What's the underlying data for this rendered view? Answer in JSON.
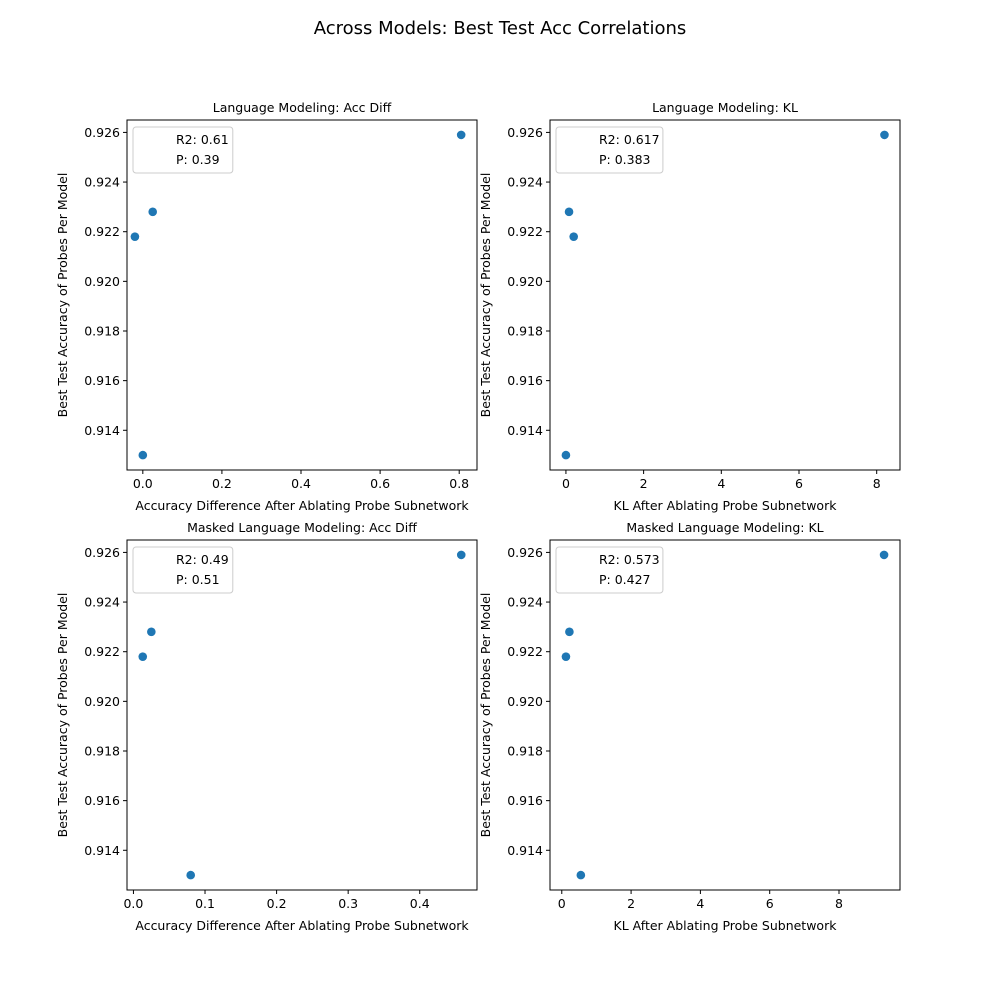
{
  "figure": {
    "title": "Across Models: Best Test Acc Correlations"
  },
  "colors": {
    "marker": "#1f77b4",
    "axis": "#000000",
    "legend_border": "#cccccc"
  },
  "chart_data": [
    {
      "type": "scatter",
      "title": "Language Modeling: Acc Diff",
      "xlabel": "Accuracy Difference After Ablating Probe Subnetwork",
      "ylabel": "Best Test Accuracy of Probes Per Model",
      "x": [
        -0.02,
        0.0,
        0.025,
        0.805
      ],
      "y": [
        0.9218,
        0.913,
        0.9228,
        0.9259
      ],
      "xlim": [
        -0.04,
        0.845
      ],
      "ylim": [
        0.9124,
        0.9265
      ],
      "xticks": [
        0.0,
        0.2,
        0.4,
        0.6,
        0.8
      ],
      "xtick_labels": [
        "0.0",
        "0.2",
        "0.4",
        "0.6",
        "0.8"
      ],
      "yticks": [
        0.914,
        0.916,
        0.918,
        0.92,
        0.922,
        0.924,
        0.926
      ],
      "ytick_labels": [
        "0.914",
        "0.916",
        "0.918",
        "0.920",
        "0.922",
        "0.924",
        "0.926"
      ],
      "legend": [
        "R2: 0.61",
        "P: 0.39"
      ],
      "legend_position": "upper left",
      "grid": false
    },
    {
      "type": "scatter",
      "title": "Language Modeling: KL",
      "xlabel": "KL After Ablating Probe Subnetwork",
      "ylabel": "Best Test Accuracy of Probes Per Model",
      "x": [
        0.0,
        0.08,
        0.2,
        8.2
      ],
      "y": [
        0.913,
        0.9228,
        0.9218,
        0.9259
      ],
      "xlim": [
        -0.41,
        8.6
      ],
      "ylim": [
        0.9124,
        0.9265
      ],
      "xticks": [
        0,
        2,
        4,
        6,
        8
      ],
      "xtick_labels": [
        "0",
        "2",
        "4",
        "6",
        "8"
      ],
      "yticks": [
        0.914,
        0.916,
        0.918,
        0.92,
        0.922,
        0.924,
        0.926
      ],
      "ytick_labels": [
        "0.914",
        "0.916",
        "0.918",
        "0.920",
        "0.922",
        "0.924",
        "0.926"
      ],
      "legend": [
        "R2: 0.617",
        "P: 0.383"
      ],
      "legend_position": "upper left",
      "grid": false
    },
    {
      "type": "scatter",
      "title": "Masked Language Modeling: Acc Diff",
      "xlabel": "Accuracy Difference After Ablating Probe Subnetwork",
      "ylabel": "Best Test Accuracy of Probes Per Model",
      "x": [
        0.013,
        0.025,
        0.08,
        0.458
      ],
      "y": [
        0.9218,
        0.9228,
        0.913,
        0.9259
      ],
      "xlim": [
        -0.009,
        0.48
      ],
      "ylim": [
        0.9124,
        0.9265
      ],
      "xticks": [
        0.0,
        0.1,
        0.2,
        0.3,
        0.4
      ],
      "xtick_labels": [
        "0.0",
        "0.1",
        "0.2",
        "0.3",
        "0.4"
      ],
      "yticks": [
        0.914,
        0.916,
        0.918,
        0.92,
        0.922,
        0.924,
        0.926
      ],
      "ytick_labels": [
        "0.914",
        "0.916",
        "0.918",
        "0.920",
        "0.922",
        "0.924",
        "0.926"
      ],
      "legend": [
        "R2: 0.49",
        "P: 0.51"
      ],
      "legend_position": "upper left",
      "grid": false
    },
    {
      "type": "scatter",
      "title": "Masked Language Modeling: KL",
      "xlabel": "KL After Ablating Probe Subnetwork",
      "ylabel": "Best Test Accuracy of Probes Per Model",
      "x": [
        0.12,
        0.22,
        0.55,
        9.3
      ],
      "y": [
        0.9218,
        0.9228,
        0.913,
        0.9259
      ],
      "xlim": [
        -0.34,
        9.76
      ],
      "ylim": [
        0.9124,
        0.9265
      ],
      "xticks": [
        0,
        2,
        4,
        6,
        8
      ],
      "xtick_labels": [
        "0",
        "2",
        "4",
        "6",
        "8"
      ],
      "yticks": [
        0.914,
        0.916,
        0.918,
        0.92,
        0.922,
        0.924,
        0.926
      ],
      "ytick_labels": [
        "0.914",
        "0.916",
        "0.918",
        "0.920",
        "0.922",
        "0.924",
        "0.926"
      ],
      "legend": [
        "R2: 0.573",
        "P: 0.427"
      ],
      "legend_position": "upper left",
      "grid": false
    }
  ]
}
